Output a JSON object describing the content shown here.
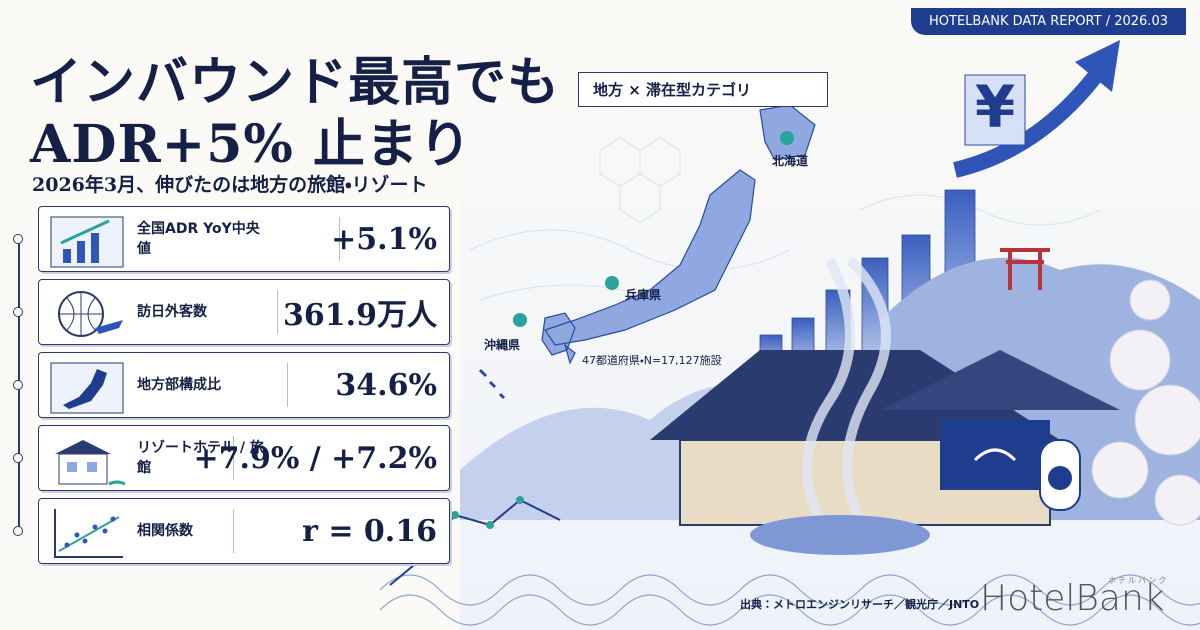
{
  "badge": "HOTELBANK DATA REPORT / 2026.03",
  "header": {
    "title_line1": "インバウンド最高でも",
    "title_line2": "ADR+5% 止まり",
    "subtitle": "2026年3月、伸びたのは地方の旅館・リゾート"
  },
  "cards": [
    {
      "label": "全国ADR YoY中央値",
      "value": "+5.1%"
    },
    {
      "label": "訪日外客数",
      "value": "361.9万人"
    },
    {
      "label": "地方部構成比",
      "value": "34.6%"
    },
    {
      "label": "リゾートホテル / 旅館",
      "value": "+7.9% / +7.2%"
    },
    {
      "label": "相関係数",
      "value": "r = 0.16"
    }
  ],
  "map": {
    "tag": "地方 × 滞在型カテゴリ",
    "pins": [
      "北海道",
      "兵庫県",
      "沖縄県"
    ],
    "note": "47都道府県・N=17,127施設"
  },
  "footer": {
    "source": "出典：メトロエンジンリサーチ／観光庁／JNTO",
    "logo": "HotelBank",
    "logo_kana": "ホテルバンク"
  }
}
